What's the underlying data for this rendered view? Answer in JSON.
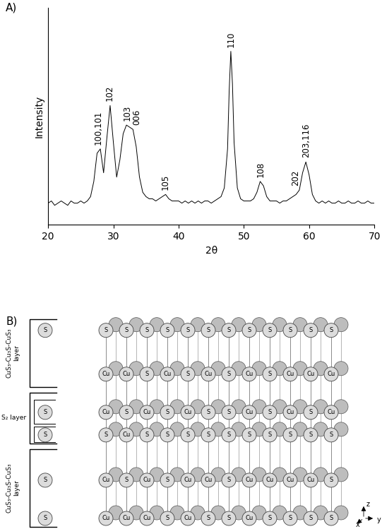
{
  "panel_labels": [
    "A)",
    "B)"
  ],
  "chart_data": {
    "type": "line",
    "x_label": "2θ",
    "y_label": "Intensity",
    "color": "#000000",
    "x": [
      20,
      20.5,
      21,
      21.5,
      22,
      22.5,
      23,
      23.5,
      24,
      24.5,
      25,
      25.5,
      26,
      26.5,
      27,
      27.5,
      28,
      28.5,
      29,
      29.5,
      30,
      30.5,
      31,
      31.5,
      32,
      32.5,
      33,
      33.5,
      34,
      34.5,
      35,
      35.5,
      36,
      36.5,
      37,
      37.5,
      38,
      38.5,
      39,
      39.5,
      40,
      40.5,
      41,
      41.5,
      42,
      42.5,
      43,
      43.5,
      44,
      44.5,
      45,
      45.5,
      46,
      46.5,
      47,
      47.5,
      47.75,
      48,
      48.25,
      48.5,
      49,
      49.5,
      50,
      50.5,
      51,
      51.5,
      52,
      52.5,
      53,
      53.5,
      54,
      54.5,
      55,
      55.5,
      56,
      56.5,
      57,
      57.5,
      58,
      58.5,
      59,
      59.5,
      60,
      60.5,
      61,
      61.5,
      62,
      62.5,
      63,
      63.5,
      64,
      64.5,
      65,
      65.5,
      66,
      66.5,
      67,
      67.5,
      68,
      68.5,
      69,
      69.5,
      70
    ],
    "values": [
      10,
      11,
      9,
      10,
      11,
      10,
      9,
      11,
      10,
      10,
      11,
      10,
      11,
      13,
      20,
      33,
      35,
      24,
      40,
      55,
      38,
      22,
      30,
      42,
      46,
      45,
      44,
      36,
      22,
      15,
      13,
      12,
      12,
      11,
      12,
      13,
      14,
      12,
      11,
      11,
      11,
      10,
      11,
      10,
      11,
      10,
      11,
      10,
      11,
      11,
      10,
      11,
      12,
      13,
      17,
      35,
      62,
      80,
      65,
      38,
      17,
      12,
      11,
      11,
      11,
      12,
      15,
      20,
      18,
      13,
      11,
      11,
      11,
      10,
      11,
      11,
      12,
      13,
      14,
      16,
      24,
      29,
      23,
      14,
      11,
      10,
      11,
      10,
      11,
      10,
      10,
      11,
      10,
      10,
      11,
      10,
      10,
      11,
      10,
      10,
      11,
      10,
      10
    ],
    "xlim": [
      20,
      70
    ],
    "xticks": [
      20,
      30,
      40,
      50,
      60,
      70
    ],
    "ylim": [
      0,
      100
    ],
    "yticks": [],
    "tick_labels": "x",
    "annotations": [
      {
        "text": "100,101",
        "x": 27.7
      },
      {
        "text": "102",
        "x": 29.4
      },
      {
        "text": "103",
        "x": 32.1
      },
      {
        "text": "006",
        "x": 33.6
      },
      {
        "text": "105",
        "x": 38.0
      },
      {
        "text": "110",
        "x": 48.0
      },
      {
        "text": "108",
        "x": 52.6
      },
      {
        "text": "202",
        "x": 57.9
      },
      {
        "text": "203,116",
        "x": 59.5
      }
    ]
  },
  "diagram": {
    "rows": [
      {
        "left": "S",
        "atoms": [
          "S",
          "S",
          "S",
          "S",
          "S",
          "S",
          "S",
          "S",
          "S",
          "S",
          "S",
          "S"
        ]
      },
      {
        "atoms": [
          "Cu",
          "Cu",
          "S",
          "Cu",
          "S",
          "Cu",
          "S",
          "Cu",
          "S",
          "Cu",
          "Cu",
          "Cu"
        ]
      },
      {
        "left": "S",
        "atoms": [
          "Cu",
          "S",
          "Cu",
          "S",
          "Cu",
          "S",
          "S",
          "Cu",
          "S",
          "Cu",
          "S",
          "Cu"
        ]
      },
      {
        "left": "S",
        "atoms": [
          "S",
          "Cu",
          "S",
          "S",
          "S",
          "S",
          "S",
          "S",
          "S",
          "S",
          "S",
          "S"
        ]
      },
      {
        "left": "S",
        "atoms": [
          "Cu",
          "S",
          "Cu",
          "S",
          "Cu",
          "Cu",
          "S",
          "Cu",
          "Cu",
          "Cu",
          "Cu",
          "S"
        ]
      },
      {
        "left": "S",
        "atoms": [
          "Cu",
          "Cu",
          "Cu",
          "S",
          "Cu",
          "S",
          "S",
          "Cu",
          "S",
          "S",
          "S",
          "S"
        ]
      }
    ],
    "layer_labels": [
      "CuS₃-Cu₃S-CuS₃\nlayer",
      "S₂ layer",
      "CuS₃-Cu₃S-CuS₃\nlayer"
    ],
    "axes_labels": [
      "x",
      "y",
      "z"
    ]
  }
}
